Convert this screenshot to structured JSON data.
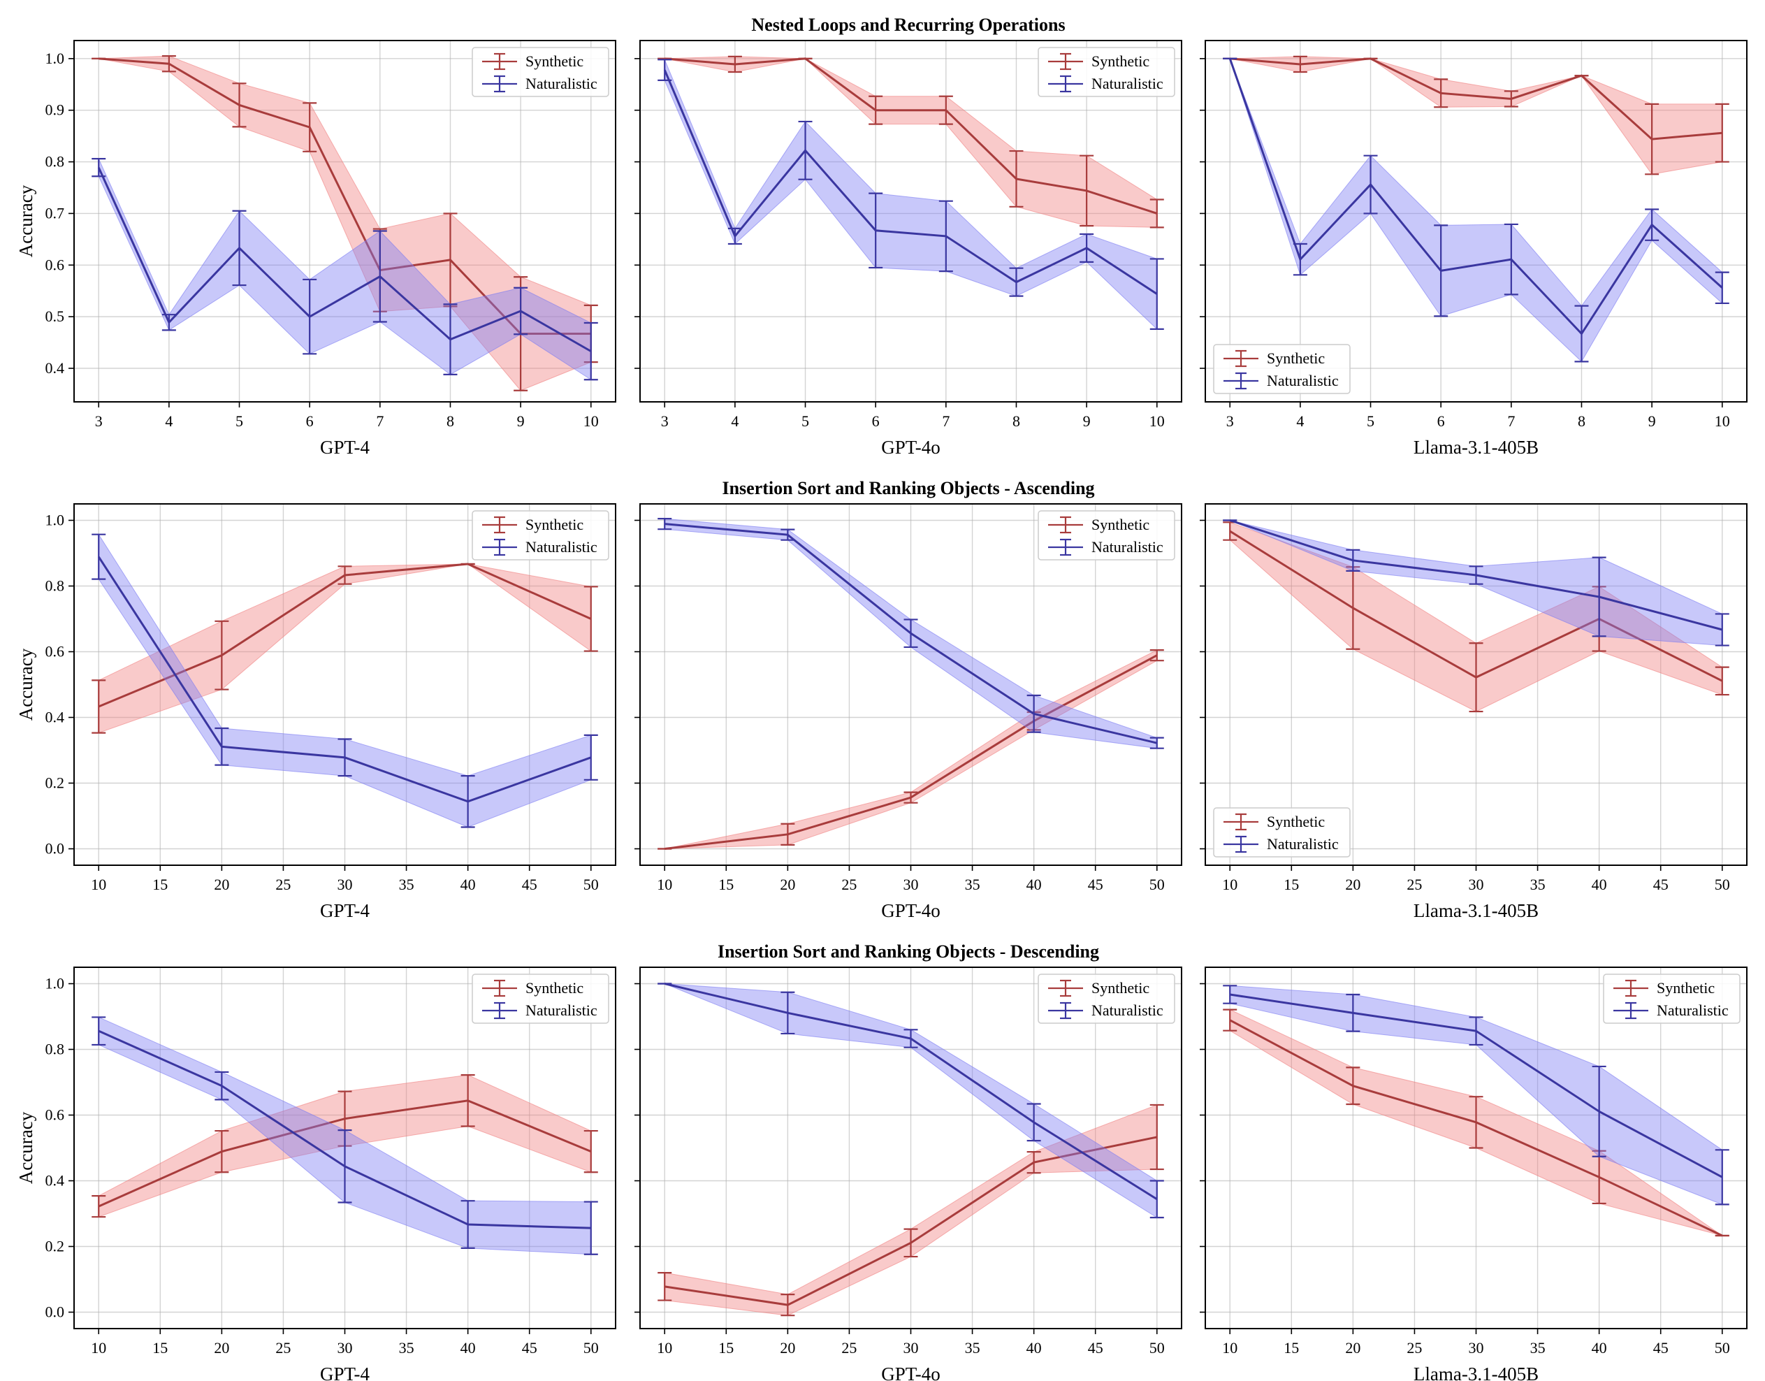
{
  "colors": {
    "synthetic_line": "#a83c3c",
    "synthetic_fill": "#f08080",
    "naturalistic_line": "#3a36a0",
    "naturalistic_fill": "#7b7bf2"
  },
  "row_titles": [
    "Nested Loops and Recurring Operations",
    "Insertion Sort and Ranking Objects - Ascending",
    "Insertion Sort and Ranking Objects - Descending"
  ],
  "ylabel": "Accuracy",
  "legend_labels": [
    "Synthetic",
    "Naturalistic"
  ],
  "chart_data": [
    {
      "type": "line",
      "row": 0,
      "col": 0,
      "title": "Nested Loops and Recurring Operations",
      "xlabel": "GPT-4",
      "ylabel": "Accuracy",
      "x": [
        3,
        4,
        5,
        6,
        7,
        8,
        9,
        10
      ],
      "xlim": [
        2.65,
        10.35
      ],
      "ylim": [
        0.335,
        1.035
      ],
      "xticks": [
        3,
        4,
        5,
        6,
        7,
        8,
        9,
        10
      ],
      "yticks": [
        0.4,
        0.5,
        0.6,
        0.7,
        0.8,
        0.9,
        1.0
      ],
      "ytick_labels": [
        "0.4",
        "0.5",
        "0.6",
        "0.7",
        "0.8",
        "0.9",
        "1.0"
      ],
      "legend": "top-right",
      "series": [
        {
          "name": "Synthetic",
          "values": [
            1.0,
            0.99,
            0.91,
            0.867,
            0.59,
            0.61,
            0.467,
            0.467
          ],
          "errors": [
            0.0,
            0.015,
            0.042,
            0.047,
            0.08,
            0.09,
            0.11,
            0.055
          ]
        },
        {
          "name": "Naturalistic",
          "values": [
            0.789,
            0.489,
            0.633,
            0.5,
            0.578,
            0.456,
            0.511,
            0.433
          ],
          "errors": [
            0.017,
            0.015,
            0.072,
            0.072,
            0.088,
            0.068,
            0.045,
            0.055
          ]
        }
      ]
    },
    {
      "type": "line",
      "row": 0,
      "col": 1,
      "xlabel": "GPT-4o",
      "ylabel": "Accuracy",
      "x": [
        3,
        4,
        5,
        6,
        7,
        8,
        9,
        10
      ],
      "xlim": [
        2.65,
        10.35
      ],
      "ylim": [
        0.335,
        1.035
      ],
      "xticks": [
        3,
        4,
        5,
        6,
        7,
        8,
        9,
        10
      ],
      "yticks": [
        0.4,
        0.5,
        0.6,
        0.7,
        0.8,
        0.9,
        1.0
      ],
      "ytick_labels": [
        "",
        "",
        "",
        "",
        "",
        "",
        ""
      ],
      "legend": "top-right",
      "series": [
        {
          "name": "Synthetic",
          "values": [
            1.0,
            0.989,
            1.0,
            0.9,
            0.9,
            0.767,
            0.744,
            0.7
          ],
          "errors": [
            0.0,
            0.015,
            0.0,
            0.027,
            0.027,
            0.054,
            0.068,
            0.027
          ]
        },
        {
          "name": "Naturalistic",
          "values": [
            0.978,
            0.656,
            0.822,
            0.667,
            0.656,
            0.567,
            0.633,
            0.544
          ],
          "errors": [
            0.02,
            0.015,
            0.056,
            0.072,
            0.068,
            0.027,
            0.027,
            0.068
          ]
        }
      ]
    },
    {
      "type": "line",
      "row": 0,
      "col": 2,
      "xlabel": "Llama-3.1-405B",
      "ylabel": "Accuracy",
      "x": [
        3,
        4,
        5,
        6,
        7,
        8,
        9,
        10
      ],
      "xlim": [
        2.65,
        10.35
      ],
      "ylim": [
        0.335,
        1.035
      ],
      "xticks": [
        3,
        4,
        5,
        6,
        7,
        8,
        9,
        10
      ],
      "yticks": [
        0.4,
        0.5,
        0.6,
        0.7,
        0.8,
        0.9,
        1.0
      ],
      "ytick_labels": [
        "",
        "",
        "",
        "",
        "",
        "",
        ""
      ],
      "legend": "bottom-left",
      "series": [
        {
          "name": "Synthetic",
          "values": [
            1.0,
            0.989,
            1.0,
            0.933,
            0.922,
            0.967,
            0.844,
            0.856
          ],
          "errors": [
            0.0,
            0.015,
            0.0,
            0.027,
            0.015,
            0.0,
            0.068,
            0.056
          ]
        },
        {
          "name": "Naturalistic",
          "values": [
            1.0,
            0.611,
            0.756,
            0.589,
            0.611,
            0.467,
            0.678,
            0.556
          ],
          "errors": [
            0.0,
            0.03,
            0.056,
            0.088,
            0.068,
            0.054,
            0.03,
            0.03
          ]
        }
      ]
    },
    {
      "type": "line",
      "row": 1,
      "col": 0,
      "title": "Insertion Sort and Ranking Objects - Ascending",
      "xlabel": "GPT-4",
      "ylabel": "Accuracy",
      "x": [
        10,
        20,
        30,
        40,
        50
      ],
      "xlim": [
        8.0,
        52.0
      ],
      "ylim": [
        -0.05,
        1.05
      ],
      "xticks": [
        10,
        15,
        20,
        25,
        30,
        35,
        40,
        45,
        50
      ],
      "yticks": [
        0.0,
        0.2,
        0.4,
        0.6,
        0.8,
        1.0
      ],
      "ytick_labels": [
        "0.0",
        "0.2",
        "0.4",
        "0.6",
        "0.8",
        "1.0"
      ],
      "legend": "top-right",
      "series": [
        {
          "name": "Synthetic",
          "values": [
            0.433,
            0.589,
            0.833,
            0.867,
            0.7
          ],
          "errors": [
            0.08,
            0.104,
            0.027,
            0.0,
            0.098
          ]
        },
        {
          "name": "Naturalistic",
          "values": [
            0.889,
            0.311,
            0.278,
            0.144,
            0.278
          ],
          "errors": [
            0.068,
            0.056,
            0.056,
            0.078,
            0.068
          ]
        }
      ]
    },
    {
      "type": "line",
      "row": 1,
      "col": 1,
      "xlabel": "GPT-4o",
      "ylabel": "Accuracy",
      "x": [
        10,
        20,
        30,
        40,
        50
      ],
      "xlim": [
        8.0,
        52.0
      ],
      "ylim": [
        -0.05,
        1.05
      ],
      "xticks": [
        10,
        15,
        20,
        25,
        30,
        35,
        40,
        45,
        50
      ],
      "yticks": [
        0.0,
        0.2,
        0.4,
        0.6,
        0.8,
        1.0
      ],
      "ytick_labels": [
        "",
        "",
        "",
        "",
        "",
        ""
      ],
      "legend": "top-right",
      "series": [
        {
          "name": "Synthetic",
          "values": [
            0.0,
            0.044,
            0.156,
            0.389,
            0.589
          ],
          "errors": [
            0.0,
            0.032,
            0.016,
            0.027,
            0.016
          ]
        },
        {
          "name": "Naturalistic",
          "values": [
            0.989,
            0.956,
            0.656,
            0.411,
            0.322
          ],
          "errors": [
            0.016,
            0.016,
            0.042,
            0.056,
            0.016
          ]
        }
      ]
    },
    {
      "type": "line",
      "row": 1,
      "col": 2,
      "xlabel": "Llama-3.1-405B",
      "ylabel": "Accuracy",
      "x": [
        10,
        20,
        30,
        40,
        50
      ],
      "xlim": [
        8.0,
        52.0
      ],
      "ylim": [
        -0.05,
        1.05
      ],
      "xticks": [
        10,
        15,
        20,
        25,
        30,
        35,
        40,
        45,
        50
      ],
      "yticks": [
        0.0,
        0.2,
        0.4,
        0.6,
        0.8,
        1.0
      ],
      "ytick_labels": [
        "",
        "",
        "",
        "",
        "",
        ""
      ],
      "legend": "bottom-left",
      "series": [
        {
          "name": "Synthetic",
          "values": [
            0.967,
            0.733,
            0.522,
            0.7,
            0.511
          ],
          "errors": [
            0.027,
            0.125,
            0.104,
            0.098,
            0.042
          ]
        },
        {
          "name": "Naturalistic",
          "values": [
            1.0,
            0.878,
            0.833,
            0.767,
            0.667
          ],
          "errors": [
            0.0,
            0.032,
            0.027,
            0.12,
            0.048
          ]
        }
      ]
    },
    {
      "type": "line",
      "row": 2,
      "col": 0,
      "title": "Insertion Sort and Ranking Objects - Descending",
      "xlabel": "GPT-4",
      "ylabel": "Accuracy",
      "x": [
        10,
        20,
        30,
        40,
        50
      ],
      "xlim": [
        8.0,
        52.0
      ],
      "ylim": [
        -0.05,
        1.05
      ],
      "xticks": [
        10,
        15,
        20,
        25,
        30,
        35,
        40,
        45,
        50
      ],
      "yticks": [
        0.0,
        0.2,
        0.4,
        0.6,
        0.8,
        1.0
      ],
      "ytick_labels": [
        "0.0",
        "0.2",
        "0.4",
        "0.6",
        "0.8",
        "1.0"
      ],
      "legend": "top-right",
      "series": [
        {
          "name": "Synthetic",
          "values": [
            0.322,
            0.489,
            0.589,
            0.644,
            0.489
          ],
          "errors": [
            0.032,
            0.063,
            0.083,
            0.078,
            0.063
          ]
        },
        {
          "name": "Naturalistic",
          "values": [
            0.856,
            0.689,
            0.444,
            0.267,
            0.256
          ],
          "errors": [
            0.042,
            0.042,
            0.11,
            0.072,
            0.08
          ]
        }
      ]
    },
    {
      "type": "line",
      "row": 2,
      "col": 1,
      "xlabel": "GPT-4o",
      "ylabel": "Accuracy",
      "x": [
        10,
        20,
        30,
        40,
        50
      ],
      "xlim": [
        8.0,
        52.0
      ],
      "ylim": [
        -0.05,
        1.05
      ],
      "xticks": [
        10,
        15,
        20,
        25,
        30,
        35,
        40,
        45,
        50
      ],
      "yticks": [
        0.0,
        0.2,
        0.4,
        0.6,
        0.8,
        1.0
      ],
      "ytick_labels": [
        "",
        "",
        "",
        "",
        "",
        ""
      ],
      "legend": "top-right",
      "series": [
        {
          "name": "Synthetic",
          "values": [
            0.078,
            0.022,
            0.211,
            0.456,
            0.533
          ],
          "errors": [
            0.042,
            0.032,
            0.042,
            0.032,
            0.098
          ]
        },
        {
          "name": "Naturalistic",
          "values": [
            1.0,
            0.911,
            0.833,
            0.578,
            0.344
          ],
          "errors": [
            0.0,
            0.063,
            0.027,
            0.056,
            0.056
          ]
        }
      ]
    },
    {
      "type": "line",
      "row": 2,
      "col": 2,
      "xlabel": "Llama-3.1-405B",
      "ylabel": "Accuracy",
      "x": [
        10,
        20,
        30,
        40,
        50
      ],
      "xlim": [
        8.0,
        52.0
      ],
      "ylim": [
        -0.05,
        1.05
      ],
      "xticks": [
        10,
        15,
        20,
        25,
        30,
        35,
        40,
        45,
        50
      ],
      "yticks": [
        0.0,
        0.2,
        0.4,
        0.6,
        0.8,
        1.0
      ],
      "ytick_labels": [
        "",
        "",
        "",
        "",
        "",
        ""
      ],
      "legend": "top-right",
      "series": [
        {
          "name": "Synthetic",
          "values": [
            0.889,
            0.689,
            0.578,
            0.411,
            0.233
          ],
          "errors": [
            0.032,
            0.056,
            0.078,
            0.08,
            0.0
          ]
        },
        {
          "name": "Naturalistic",
          "values": [
            0.967,
            0.911,
            0.856,
            0.611,
            0.411
          ],
          "errors": [
            0.027,
            0.056,
            0.042,
            0.137,
            0.083
          ]
        }
      ]
    }
  ]
}
